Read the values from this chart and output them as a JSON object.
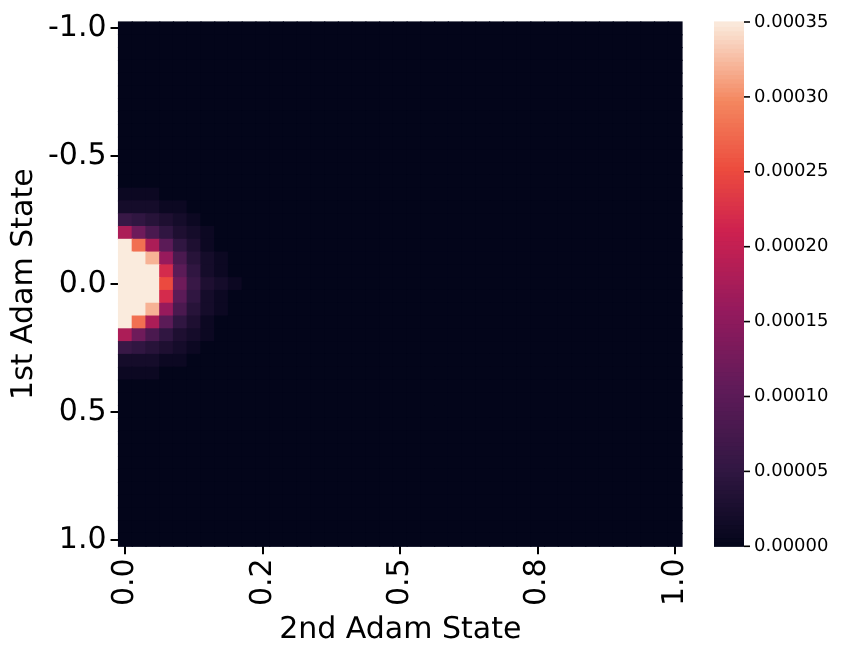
{
  "chart_data": {
    "type": "heatmap",
    "xlabel": "2nd Adam State",
    "ylabel": "1st Adam State",
    "categories": [
      "0.0",
      null,
      null,
      null,
      null,
      null,
      null,
      null,
      null,
      null,
      "0.2",
      null,
      null,
      null,
      null,
      null,
      null,
      null,
      null,
      null,
      "0.5",
      null,
      null,
      null,
      null,
      null,
      null,
      null,
      null,
      null,
      "0.8",
      null,
      null,
      null,
      null,
      null,
      null,
      null,
      null,
      null,
      "1.0"
    ],
    "y_categories": [
      "-1.0",
      null,
      null,
      null,
      null,
      null,
      null,
      null,
      null,
      null,
      "-0.5",
      null,
      null,
      null,
      null,
      null,
      null,
      null,
      null,
      null,
      "0.0",
      null,
      null,
      null,
      null,
      null,
      null,
      null,
      null,
      null,
      "0.5",
      null,
      null,
      null,
      null,
      null,
      null,
      null,
      null,
      null,
      "1.0"
    ],
    "clim": [
      0,
      0.00035
    ],
    "cticks": [
      {
        "value": 0,
        "label": "0.00000"
      },
      {
        "value": 5e-05,
        "label": "0.00005"
      },
      {
        "value": 0.0001,
        "label": "0.00010"
      },
      {
        "value": 0.00015,
        "label": "0.00015"
      },
      {
        "value": 0.0002,
        "label": "0.00020"
      },
      {
        "value": 0.00025,
        "label": "0.00025"
      },
      {
        "value": 0.0003,
        "label": "0.00030"
      },
      {
        "value": 0.00035,
        "label": "0.00035"
      }
    ],
    "cells": [
      [
        0,
        0,
        0,
        0,
        0,
        0,
        0,
        0,
        0,
        0,
        0,
        0,
        0,
        0,
        0,
        0,
        0,
        0,
        0,
        0,
        0,
        0,
        0,
        0,
        0,
        0,
        0,
        0,
        0,
        0,
        0,
        0,
        0,
        0,
        0,
        0,
        0,
        0,
        0,
        0,
        0
      ],
      [
        0,
        0,
        0,
        0,
        0,
        0,
        0,
        0,
        0,
        0,
        0,
        0,
        0,
        0,
        0,
        0,
        0,
        0,
        0,
        0,
        0,
        0,
        0,
        0,
        0,
        0,
        0,
        0,
        0,
        0,
        0,
        0,
        0,
        0,
        0,
        0,
        0,
        0,
        0,
        0,
        0
      ],
      [
        0,
        0,
        0,
        0,
        0,
        0,
        0,
        0,
        0,
        0,
        0,
        0,
        0,
        0,
        0,
        0,
        0,
        0,
        0,
        0,
        0,
        0,
        0,
        0,
        0,
        0,
        0,
        0,
        0,
        0,
        0,
        0,
        0,
        0,
        0,
        0,
        0,
        0,
        0,
        0,
        0
      ],
      [
        0,
        0,
        0,
        0,
        0,
        0,
        0,
        0,
        0,
        0,
        0,
        0,
        0,
        0,
        0,
        0,
        0,
        0,
        0,
        0,
        0,
        0,
        0,
        0,
        0,
        0,
        0,
        0,
        0,
        0,
        0,
        0,
        0,
        0,
        0,
        0,
        0,
        0,
        0,
        0,
        0
      ],
      [
        0,
        0,
        0,
        0,
        0,
        0,
        0,
        0,
        0,
        0,
        0,
        0,
        0,
        0,
        0,
        0,
        0,
        0,
        0,
        0,
        0,
        0,
        0,
        0,
        0,
        0,
        0,
        0,
        0,
        0,
        0,
        0,
        0,
        0,
        0,
        0,
        0,
        0,
        0,
        0,
        0
      ],
      [
        0,
        0,
        0,
        0,
        0,
        0,
        0,
        0,
        0,
        0,
        0,
        0,
        0,
        0,
        0,
        0,
        0,
        0,
        0,
        0,
        0,
        0,
        0,
        0,
        0,
        0,
        0,
        0,
        0,
        0,
        0,
        0,
        0,
        0,
        0,
        0,
        0,
        0,
        0,
        0,
        0
      ],
      [
        0,
        0,
        0,
        0,
        0,
        0,
        0,
        0,
        0,
        0,
        0,
        0,
        0,
        0,
        0,
        0,
        0,
        0,
        0,
        0,
        0,
        0,
        0,
        0,
        0,
        0,
        0,
        0,
        0,
        0,
        0,
        0,
        0,
        0,
        0,
        0,
        0,
        0,
        0,
        0,
        0
      ],
      [
        0,
        0,
        0,
        0,
        0,
        0,
        0,
        0,
        0,
        0,
        0,
        0,
        0,
        0,
        0,
        0,
        0,
        0,
        0,
        0,
        0,
        0,
        0,
        0,
        0,
        0,
        0,
        0,
        0,
        0,
        0,
        0,
        0,
        0,
        0,
        0,
        0,
        0,
        0,
        0,
        0
      ],
      [
        0,
        0,
        0,
        0,
        0,
        0,
        0,
        0,
        0,
        0,
        0,
        0,
        0,
        0,
        0,
        0,
        0,
        0,
        0,
        0,
        0,
        0,
        0,
        0,
        0,
        0,
        0,
        0,
        0,
        0,
        0,
        0,
        0,
        0,
        0,
        0,
        0,
        0,
        0,
        0,
        0
      ],
      [
        0,
        0,
        0,
        0,
        0,
        0,
        0,
        0,
        0,
        0,
        0,
        0,
        0,
        0,
        0,
        0,
        0,
        0,
        0,
        0,
        0,
        0,
        0,
        0,
        0,
        0,
        0,
        0,
        0,
        0,
        0,
        0,
        0,
        0,
        0,
        0,
        0,
        0,
        0,
        0,
        0
      ],
      [
        0,
        0,
        0,
        0,
        0,
        0,
        0,
        0,
        0,
        0,
        0,
        0,
        0,
        0,
        0,
        0,
        0,
        0,
        0,
        0,
        0,
        0,
        0,
        0,
        0,
        0,
        0,
        0,
        0,
        0,
        0,
        0,
        0,
        0,
        0,
        0,
        0,
        0,
        0,
        0,
        0
      ],
      [
        0,
        0,
        0,
        0,
        0,
        0,
        0,
        0,
        0,
        0,
        0,
        0,
        0,
        0,
        0,
        0,
        0,
        0,
        0,
        0,
        0,
        0,
        0,
        0,
        0,
        0,
        0,
        0,
        0,
        0,
        0,
        0,
        0,
        0,
        0,
        0,
        0,
        0,
        0,
        0,
        0
      ],
      [
        0,
        0,
        0,
        0,
        0,
        0,
        0,
        0,
        0,
        0,
        0,
        0,
        0,
        0,
        0,
        0,
        0,
        0,
        0,
        0,
        0,
        0,
        0,
        0,
        0,
        0,
        0,
        0,
        0,
        0,
        0,
        0,
        0,
        0,
        0,
        0,
        0,
        0,
        0,
        0,
        0
      ],
      [
        1e-05,
        1e-05,
        1e-05,
        0,
        0,
        0,
        0,
        0,
        0,
        0,
        0,
        0,
        0,
        0,
        0,
        0,
        0,
        0,
        0,
        0,
        0,
        0,
        0,
        0,
        0,
        0,
        0,
        0,
        0,
        0,
        0,
        0,
        0,
        0,
        0,
        0,
        0,
        0,
        0,
        0,
        0
      ],
      [
        2e-05,
        2e-05,
        2e-05,
        1e-05,
        1e-05,
        0,
        0,
        0,
        0,
        0,
        0,
        0,
        0,
        0,
        0,
        0,
        0,
        0,
        0,
        0,
        0,
        0,
        0,
        0,
        0,
        0,
        0,
        0,
        0,
        0,
        0,
        0,
        0,
        0,
        0,
        0,
        0,
        0,
        0,
        0,
        0
      ],
      [
        6e-05,
        5e-05,
        4e-05,
        3e-05,
        2e-05,
        1e-05,
        0,
        0,
        0,
        0,
        0,
        0,
        0,
        0,
        0,
        0,
        0,
        0,
        0,
        0,
        0,
        0,
        0,
        0,
        0,
        0,
        0,
        0,
        0,
        0,
        0,
        0,
        0,
        0,
        0,
        0,
        0,
        0,
        0,
        0,
        0
      ],
      [
        0.00018,
        0.00012,
        8e-05,
        5e-05,
        3e-05,
        2e-05,
        1e-05,
        0,
        0,
        0,
        0,
        0,
        0,
        0,
        0,
        0,
        0,
        0,
        0,
        0,
        0,
        0,
        0,
        0,
        0,
        0,
        0,
        0,
        0,
        0,
        0,
        0,
        0,
        0,
        0,
        0,
        0,
        0,
        0,
        0,
        0
      ],
      [
        0.00035,
        0.00028,
        0.00018,
        0.0001,
        5e-05,
        3e-05,
        1e-05,
        0,
        0,
        0,
        0,
        0,
        0,
        0,
        0,
        0,
        0,
        0,
        0,
        0,
        0,
        0,
        0,
        0,
        0,
        0,
        0,
        0,
        0,
        0,
        0,
        0,
        0,
        0,
        0,
        0,
        0,
        0,
        0,
        0,
        0
      ],
      [
        0.00035,
        0.00035,
        0.00032,
        0.00016,
        8e-05,
        4e-05,
        2e-05,
        1e-05,
        0,
        0,
        0,
        0,
        0,
        0,
        0,
        0,
        0,
        0,
        0,
        0,
        0,
        0,
        0,
        0,
        0,
        0,
        0,
        0,
        0,
        0,
        0,
        0,
        0,
        0,
        0,
        0,
        0,
        0,
        0,
        0,
        0
      ],
      [
        0.00035,
        0.00035,
        0.00035,
        0.00022,
        0.0001,
        5e-05,
        2e-05,
        1e-05,
        0,
        0,
        0,
        0,
        0,
        0,
        0,
        0,
        0,
        0,
        0,
        0,
        0,
        0,
        0,
        0,
        0,
        0,
        0,
        0,
        0,
        0,
        0,
        0,
        0,
        0,
        0,
        0,
        0,
        0,
        0,
        0,
        0
      ],
      [
        0.00035,
        0.00035,
        0.00035,
        0.00025,
        0.00012,
        6e-05,
        3e-05,
        2e-05,
        1e-05,
        0,
        0,
        0,
        0,
        0,
        0,
        0,
        0,
        0,
        0,
        0,
        0,
        0,
        0,
        0,
        0,
        0,
        0,
        0,
        0,
        0,
        0,
        0,
        0,
        0,
        0,
        0,
        0,
        0,
        0,
        0,
        0
      ],
      [
        0.00035,
        0.00035,
        0.00035,
        0.00022,
        0.0001,
        5e-05,
        2e-05,
        1e-05,
        0,
        0,
        0,
        0,
        0,
        0,
        0,
        0,
        0,
        0,
        0,
        0,
        0,
        0,
        0,
        0,
        0,
        0,
        0,
        0,
        0,
        0,
        0,
        0,
        0,
        0,
        0,
        0,
        0,
        0,
        0,
        0,
        0
      ],
      [
        0.00035,
        0.00035,
        0.00032,
        0.00016,
        8e-05,
        4e-05,
        2e-05,
        1e-05,
        0,
        0,
        0,
        0,
        0,
        0,
        0,
        0,
        0,
        0,
        0,
        0,
        0,
        0,
        0,
        0,
        0,
        0,
        0,
        0,
        0,
        0,
        0,
        0,
        0,
        0,
        0,
        0,
        0,
        0,
        0,
        0,
        0
      ],
      [
        0.00035,
        0.00028,
        0.00018,
        0.0001,
        5e-05,
        3e-05,
        1e-05,
        0,
        0,
        0,
        0,
        0,
        0,
        0,
        0,
        0,
        0,
        0,
        0,
        0,
        0,
        0,
        0,
        0,
        0,
        0,
        0,
        0,
        0,
        0,
        0,
        0,
        0,
        0,
        0,
        0,
        0,
        0,
        0,
        0,
        0
      ],
      [
        0.00018,
        0.00012,
        8e-05,
        5e-05,
        3e-05,
        2e-05,
        1e-05,
        0,
        0,
        0,
        0,
        0,
        0,
        0,
        0,
        0,
        0,
        0,
        0,
        0,
        0,
        0,
        0,
        0,
        0,
        0,
        0,
        0,
        0,
        0,
        0,
        0,
        0,
        0,
        0,
        0,
        0,
        0,
        0,
        0,
        0
      ],
      [
        6e-05,
        5e-05,
        4e-05,
        3e-05,
        2e-05,
        1e-05,
        0,
        0,
        0,
        0,
        0,
        0,
        0,
        0,
        0,
        0,
        0,
        0,
        0,
        0,
        0,
        0,
        0,
        0,
        0,
        0,
        0,
        0,
        0,
        0,
        0,
        0,
        0,
        0,
        0,
        0,
        0,
        0,
        0,
        0,
        0
      ],
      [
        2e-05,
        2e-05,
        2e-05,
        1e-05,
        1e-05,
        0,
        0,
        0,
        0,
        0,
        0,
        0,
        0,
        0,
        0,
        0,
        0,
        0,
        0,
        0,
        0,
        0,
        0,
        0,
        0,
        0,
        0,
        0,
        0,
        0,
        0,
        0,
        0,
        0,
        0,
        0,
        0,
        0,
        0,
        0,
        0
      ],
      [
        1e-05,
        1e-05,
        1e-05,
        0,
        0,
        0,
        0,
        0,
        0,
        0,
        0,
        0,
        0,
        0,
        0,
        0,
        0,
        0,
        0,
        0,
        0,
        0,
        0,
        0,
        0,
        0,
        0,
        0,
        0,
        0,
        0,
        0,
        0,
        0,
        0,
        0,
        0,
        0,
        0,
        0,
        0
      ],
      [
        0,
        0,
        0,
        0,
        0,
        0,
        0,
        0,
        0,
        0,
        0,
        0,
        0,
        0,
        0,
        0,
        0,
        0,
        0,
        0,
        0,
        0,
        0,
        0,
        0,
        0,
        0,
        0,
        0,
        0,
        0,
        0,
        0,
        0,
        0,
        0,
        0,
        0,
        0,
        0,
        0
      ],
      [
        0,
        0,
        0,
        0,
        0,
        0,
        0,
        0,
        0,
        0,
        0,
        0,
        0,
        0,
        0,
        0,
        0,
        0,
        0,
        0,
        0,
        0,
        0,
        0,
        0,
        0,
        0,
        0,
        0,
        0,
        0,
        0,
        0,
        0,
        0,
        0,
        0,
        0,
        0,
        0,
        0
      ],
      [
        0,
        0,
        0,
        0,
        0,
        0,
        0,
        0,
        0,
        0,
        0,
        0,
        0,
        0,
        0,
        0,
        0,
        0,
        0,
        0,
        0,
        0,
        0,
        0,
        0,
        0,
        0,
        0,
        0,
        0,
        0,
        0,
        0,
        0,
        0,
        0,
        0,
        0,
        0,
        0,
        0
      ],
      [
        0,
        0,
        0,
        0,
        0,
        0,
        0,
        0,
        0,
        0,
        0,
        0,
        0,
        0,
        0,
        0,
        0,
        0,
        0,
        0,
        0,
        0,
        0,
        0,
        0,
        0,
        0,
        0,
        0,
        0,
        0,
        0,
        0,
        0,
        0,
        0,
        0,
        0,
        0,
        0,
        0
      ],
      [
        0,
        0,
        0,
        0,
        0,
        0,
        0,
        0,
        0,
        0,
        0,
        0,
        0,
        0,
        0,
        0,
        0,
        0,
        0,
        0,
        0,
        0,
        0,
        0,
        0,
        0,
        0,
        0,
        0,
        0,
        0,
        0,
        0,
        0,
        0,
        0,
        0,
        0,
        0,
        0,
        0
      ],
      [
        0,
        0,
        0,
        0,
        0,
        0,
        0,
        0,
        0,
        0,
        0,
        0,
        0,
        0,
        0,
        0,
        0,
        0,
        0,
        0,
        0,
        0,
        0,
        0,
        0,
        0,
        0,
        0,
        0,
        0,
        0,
        0,
        0,
        0,
        0,
        0,
        0,
        0,
        0,
        0,
        0
      ],
      [
        0,
        0,
        0,
        0,
        0,
        0,
        0,
        0,
        0,
        0,
        0,
        0,
        0,
        0,
        0,
        0,
        0,
        0,
        0,
        0,
        0,
        0,
        0,
        0,
        0,
        0,
        0,
        0,
        0,
        0,
        0,
        0,
        0,
        0,
        0,
        0,
        0,
        0,
        0,
        0,
        0
      ],
      [
        0,
        0,
        0,
        0,
        0,
        0,
        0,
        0,
        0,
        0,
        0,
        0,
        0,
        0,
        0,
        0,
        0,
        0,
        0,
        0,
        0,
        0,
        0,
        0,
        0,
        0,
        0,
        0,
        0,
        0,
        0,
        0,
        0,
        0,
        0,
        0,
        0,
        0,
        0,
        0,
        0
      ],
      [
        0,
        0,
        0,
        0,
        0,
        0,
        0,
        0,
        0,
        0,
        0,
        0,
        0,
        0,
        0,
        0,
        0,
        0,
        0,
        0,
        0,
        0,
        0,
        0,
        0,
        0,
        0,
        0,
        0,
        0,
        0,
        0,
        0,
        0,
        0,
        0,
        0,
        0,
        0,
        0,
        0
      ],
      [
        0,
        0,
        0,
        0,
        0,
        0,
        0,
        0,
        0,
        0,
        0,
        0,
        0,
        0,
        0,
        0,
        0,
        0,
        0,
        0,
        0,
        0,
        0,
        0,
        0,
        0,
        0,
        0,
        0,
        0,
        0,
        0,
        0,
        0,
        0,
        0,
        0,
        0,
        0,
        0,
        0
      ],
      [
        0,
        0,
        0,
        0,
        0,
        0,
        0,
        0,
        0,
        0,
        0,
        0,
        0,
        0,
        0,
        0,
        0,
        0,
        0,
        0,
        0,
        0,
        0,
        0,
        0,
        0,
        0,
        0,
        0,
        0,
        0,
        0,
        0,
        0,
        0,
        0,
        0,
        0,
        0,
        0,
        0
      ],
      [
        0,
        0,
        0,
        0,
        0,
        0,
        0,
        0,
        0,
        0,
        0,
        0,
        0,
        0,
        0,
        0,
        0,
        0,
        0,
        0,
        0,
        0,
        0,
        0,
        0,
        0,
        0,
        0,
        0,
        0,
        0,
        0,
        0,
        0,
        0,
        0,
        0,
        0,
        0,
        0,
        0
      ],
      [
        0,
        0,
        0,
        0,
        0,
        0,
        0,
        0,
        0,
        0,
        0,
        0,
        0,
        0,
        0,
        0,
        0,
        0,
        0,
        0,
        0,
        0,
        0,
        0,
        0,
        0,
        0,
        0,
        0,
        0,
        0,
        0,
        0,
        0,
        0,
        0,
        0,
        0,
        0,
        0,
        0
      ]
    ]
  }
}
